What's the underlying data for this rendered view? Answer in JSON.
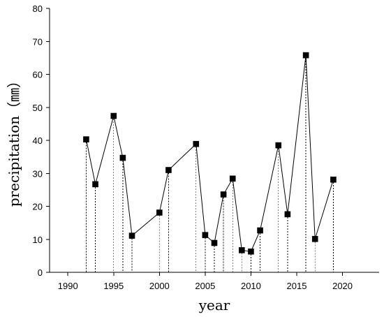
{
  "chart_data": {
    "type": "line",
    "xlabel": "year",
    "ylabel": "precipitation（㎜）",
    "xlim": [
      1988,
      2024
    ],
    "ylim": [
      0,
      80
    ],
    "xticks": [
      1990,
      1995,
      2000,
      2005,
      2010,
      2015,
      2020
    ],
    "yticks": [
      0,
      10,
      20,
      30,
      40,
      50,
      60,
      70,
      80
    ],
    "grid": false,
    "legend": "none",
    "drop_lines": true,
    "series": [
      {
        "x": [
          1992,
          1993,
          1995,
          1996,
          1997,
          2000,
          2001,
          2004,
          2005,
          2006,
          2007,
          2008,
          2009,
          2010,
          2011,
          2013,
          2014,
          2016,
          2017,
          2019
        ],
        "values": [
          40.3,
          26.7,
          47.4,
          34.7,
          11.1,
          18.1,
          31.0,
          38.9,
          11.3,
          8.9,
          23.6,
          28.4,
          6.7,
          6.3,
          12.7,
          38.5,
          17.6,
          65.8,
          10.1,
          28.1
        ],
        "color": "#000000",
        "marker": "square"
      }
    ]
  }
}
